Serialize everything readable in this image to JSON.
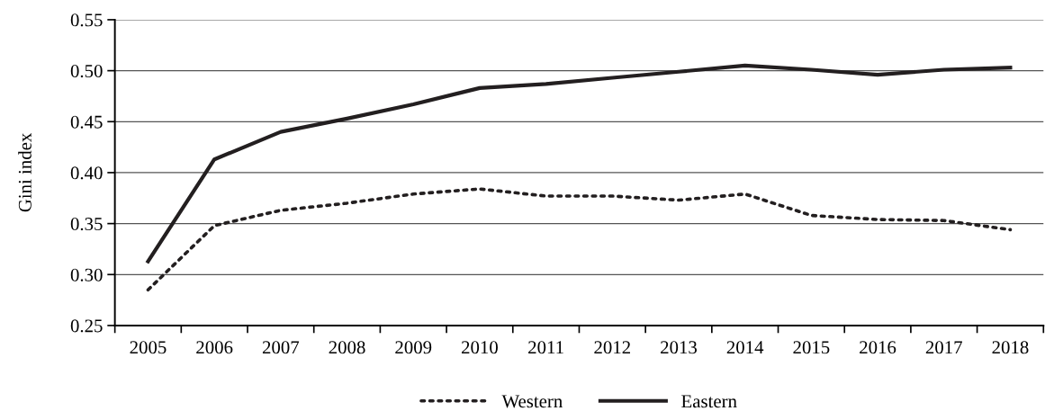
{
  "chart_data": {
    "type": "line",
    "ylabel": "Gini index",
    "categories": [
      "2005",
      "2006",
      "2007",
      "2008",
      "2009",
      "2010",
      "2011",
      "2012",
      "2013",
      "2014",
      "2015",
      "2016",
      "2017",
      "2018"
    ],
    "series": [
      {
        "name": "Western",
        "color": "#231f20",
        "line_style": "dotted",
        "values": [
          0.285,
          0.348,
          0.363,
          0.37,
          0.379,
          0.384,
          0.377,
          0.377,
          0.373,
          0.379,
          0.358,
          0.354,
          0.353,
          0.344
        ]
      },
      {
        "name": "Eastern",
        "color": "#231f20",
        "line_style": "solid",
        "values": [
          0.313,
          0.413,
          0.44,
          0.453,
          0.467,
          0.483,
          0.487,
          0.493,
          0.499,
          0.505,
          0.501,
          0.496,
          0.501,
          0.503
        ]
      }
    ],
    "ylim": [
      0.25,
      0.55
    ],
    "yticks": [
      {
        "value": 0.25,
        "label": "0.25"
      },
      {
        "value": 0.3,
        "label": "0.30"
      },
      {
        "value": 0.35,
        "label": "0.35"
      },
      {
        "value": 0.4,
        "label": "0.40"
      },
      {
        "value": 0.45,
        "label": "0.45"
      },
      {
        "value": 0.5,
        "label": "0.50"
      },
      {
        "value": 0.55,
        "label": "0.55"
      }
    ],
    "grid": "y",
    "legend": "bottom",
    "marker": "none"
  }
}
